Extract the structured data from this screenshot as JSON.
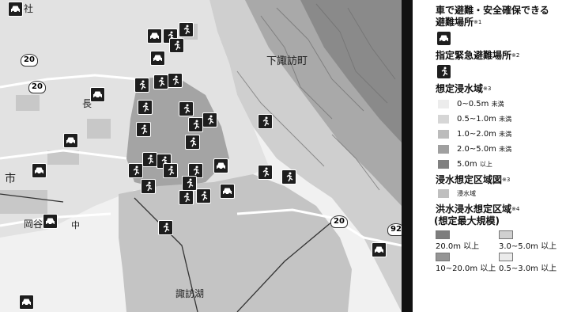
{
  "map": {
    "place_labels": [
      {
        "id": "shimosuwa",
        "text": "下諏訪町"
      },
      {
        "id": "suwa-lake",
        "text": "諏訪湖"
      },
      {
        "id": "ichi",
        "text": "市"
      },
      {
        "id": "okaya",
        "text": "岡谷"
      },
      {
        "id": "cho",
        "text": "長"
      },
      {
        "id": "sha",
        "text": "社"
      },
      {
        "id": "chuo",
        "text": "中"
      }
    ],
    "route_labels": [
      "20",
      "20",
      "20",
      "92"
    ],
    "colors": {
      "water": "#c4c4c4",
      "urban": "#d2d2d2",
      "flood": "#8c8c8c",
      "marker": "#1e1e1e",
      "road": "#ffffff"
    }
  },
  "legend": {
    "car_section": {
      "title_line1": "車で避難・安全確保できる",
      "title_line2": "避難場所",
      "note": "※1",
      "icon": "car-icon"
    },
    "designated_section": {
      "title": "指定緊急避難場所",
      "note": "※2",
      "icon": "running-person-icon"
    },
    "flood_section": {
      "title": "想定浸水域",
      "note": "※3",
      "items": [
        {
          "range": "0~0.5m",
          "suffix": "未満",
          "color": "#ececec"
        },
        {
          "range": "0.5~1.0m",
          "suffix": "未満",
          "color": "#d6d6d6"
        },
        {
          "range": "1.0~2.0m",
          "suffix": "未満",
          "color": "#bcbcbc"
        },
        {
          "range": "2.0~5.0m",
          "suffix": "未満",
          "color": "#a0a0a0"
        },
        {
          "range": "5.0m",
          "suffix": "以上",
          "color": "#808080"
        }
      ]
    },
    "flood_zone_section": {
      "title": "浸水想定区域図",
      "note": "※3",
      "item": "浸水域",
      "color": "#bfbfbf"
    },
    "river_section": {
      "title_line1": "洪水浸水想定区域",
      "note": "※4",
      "title_line2": "(想定最大規模)",
      "items": [
        {
          "label": "20.0m 以上",
          "color": "#7d7d7d"
        },
        {
          "label": "3.0~5.0m 以上",
          "color": "#d0d0d0"
        },
        {
          "label": "10~20.0m 以上",
          "color": "#959595"
        },
        {
          "label": "0.5~3.0m 以上",
          "color": "#ebebeb"
        }
      ]
    }
  }
}
